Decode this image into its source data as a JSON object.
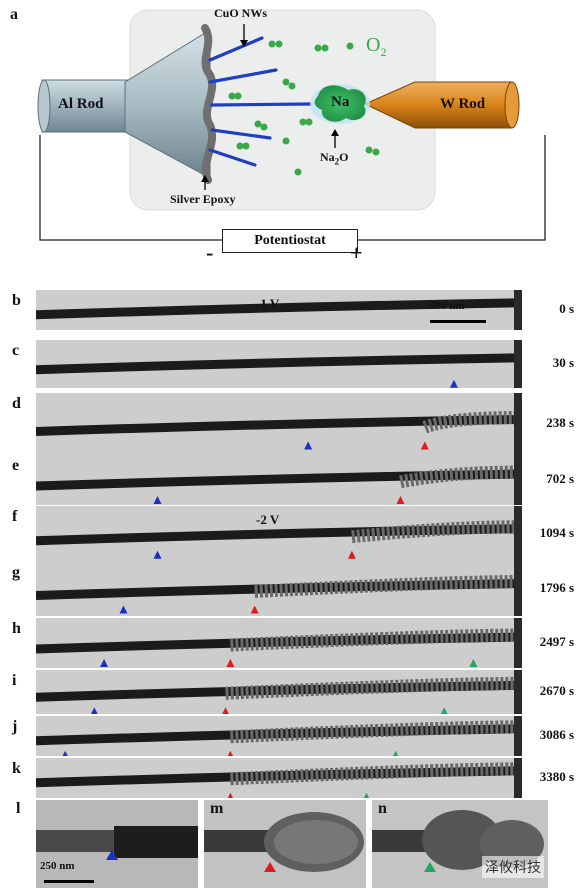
{
  "schematic": {
    "panel_label": "a",
    "cuo_nws": "CuO NWs",
    "o2": "O",
    "o2_sub": "2",
    "al_rod": "Al Rod",
    "w_rod": "W Rod",
    "na": "Na",
    "na2o": "Na",
    "na2o_sub": "2",
    "na2o_tail": "O",
    "silver_epoxy": "Silver Epoxy",
    "potentiostat": "Potentiostat",
    "minus": "-",
    "plus": "+"
  },
  "frames": [
    {
      "label": "b",
      "time": "0 s",
      "voltage": "-1 V",
      "scale": "500 nm"
    },
    {
      "label": "c",
      "time": "30 s"
    },
    {
      "label": "d",
      "time": "238 s"
    },
    {
      "label": "e",
      "time": "702 s"
    },
    {
      "label": "f",
      "time": "1094 s",
      "voltage": "-2 V"
    },
    {
      "label": "g",
      "time": "1796 s"
    },
    {
      "label": "h",
      "time": "2497 s"
    },
    {
      "label": "i",
      "time": "2670 s"
    },
    {
      "label": "j",
      "time": "3086 s"
    },
    {
      "label": "k",
      "time": "3380 s"
    }
  ],
  "bottom": {
    "l": "l",
    "m": "m",
    "n": "n",
    "scale": "250 nm",
    "watermark": "泽攸科技"
  },
  "colors": {
    "blue_marker": "#1f2fbf",
    "red_marker": "#e01b1b",
    "green_marker": "#1fa860",
    "w_rod": "#d98319",
    "al_rod": "#9fb3bd",
    "na_green": "#2daa55"
  }
}
